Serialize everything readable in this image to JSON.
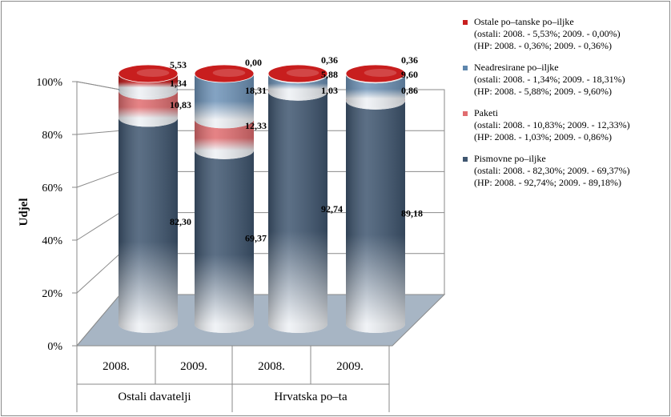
{
  "chart_data": {
    "type": "bar",
    "stacked": true,
    "ylabel": "Udjel",
    "xlabel": "",
    "ylim": [
      0,
      100
    ],
    "yticks": [
      "0%",
      "20%",
      "40%",
      "60%",
      "80%",
      "100%"
    ],
    "grid": true,
    "legend_position": "right",
    "categories": [
      "2008.",
      "2009.",
      "2008.",
      "2009."
    ],
    "groups": [
      {
        "label": "Ostali davatelji",
        "categories": [
          "2008.",
          "2009."
        ]
      },
      {
        "label": "Hrvatska po–ta",
        "categories": [
          "2008.",
          "2009."
        ]
      }
    ],
    "series": [
      {
        "name": "Pismovne po–iljke",
        "color": "#3f5670",
        "values": [
          82.3,
          69.37,
          92.74,
          89.18
        ],
        "labels": [
          "82,30",
          "69,37",
          "92,74",
          "89,18"
        ]
      },
      {
        "name": "Paketi",
        "color": "#e16d70",
        "values": [
          10.83,
          12.33,
          1.03,
          0.86
        ],
        "labels": [
          "10,83",
          "12,33",
          "1,03",
          "0,86"
        ]
      },
      {
        "name": "Neadresirane po–iljke",
        "color": "#6e93b8",
        "values": [
          1.34,
          18.31,
          5.88,
          9.6
        ],
        "labels": [
          "1,34",
          "18,31",
          "5,88",
          "9,60"
        ]
      },
      {
        "name": "Ostale po–tanske po–iljke",
        "color": "#c81e1e",
        "values": [
          5.53,
          0.0,
          0.36,
          0.36
        ],
        "labels": [
          "5,53",
          "0,00",
          "0,36",
          "0,36"
        ]
      }
    ]
  },
  "legend": [
    {
      "color": "#c81e1e",
      "title": "Ostale po–tanske po–iljke",
      "line2": "(ostali: 2008. - 5,53%; 2009. - 0,00%)",
      "line3": "(HP: 2008. - 0,36%; 2009. - 0,36%)"
    },
    {
      "color": "#5e86ad",
      "title": "Neadresirane po–iljke",
      "line2": "(ostali: 2008. - 1,34%; 2009. - 18,31%)",
      "line3": "(HP: 2008. - 5,88%; 2009. - 9,60%)"
    },
    {
      "color": "#e16d70",
      "title": "Paketi",
      "line2": "(ostali: 2008. - 10,83%; 2009. - 12,33%)",
      "line3": "(HP: 2008. - 1,03%; 2009. - 0,86%)"
    },
    {
      "color": "#3f5670",
      "title": "Pismovne po–iljke",
      "line2": "(ostali: 2008. - 82,30%; 2009. - 69,37%)",
      "line3": "(HP: 2008. - 92,74%; 2009. - 89,18%)"
    }
  ]
}
